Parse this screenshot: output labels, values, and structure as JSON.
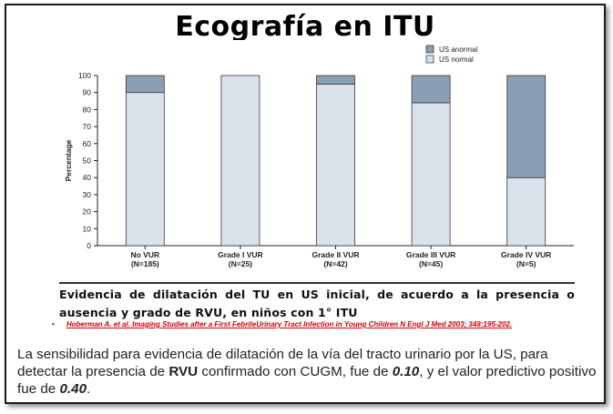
{
  "slide": {
    "title": "Ecografía en ITU",
    "caption": "Evidencia de dilatación del TU en US inicial, de acuerdo a la presencia o ausencia y grado de RVU, en niños con 1° ITU",
    "reference": "Hoberman A. et al. Imaging Studies after a First FebrileUrinary Tract Infection in Young Children N Engl J Med 2003; 348:195-202.",
    "reference_bullet": "•",
    "body": {
      "p1": "La sensibilidad para evidencia de dilatación de la vía del tracto urinario por la US, para detectar la presencia de ",
      "rvu": "RVU",
      "p2": "  confirmado con CUGM, fue de ",
      "sens": "0.10",
      "p3": ", y el valor predictivo positivo fue de ",
      "ppv": "0.40",
      "p4": "."
    }
  },
  "chart_data": {
    "type": "bar",
    "stacked": true,
    "ylabel": "Percentage",
    "ylim": [
      0,
      100
    ],
    "yticks": [
      0,
      10,
      20,
      30,
      40,
      50,
      60,
      70,
      80,
      90,
      100
    ],
    "categories": [
      "No VUR",
      "Grade I VUR",
      "Grade II VUR",
      "Grade III VUR",
      "Grade IV VUR"
    ],
    "category_n": [
      "(N=185)",
      "(N=25)",
      "(N=42)",
      "(N=45)",
      "(N=5)"
    ],
    "series": [
      {
        "name": "US normal",
        "values": [
          90,
          100,
          95,
          84,
          40
        ],
        "color": "#d9e2ea"
      },
      {
        "name": "US anormal",
        "values": [
          10,
          0,
          5,
          16,
          60
        ],
        "color": "#8a9fb3"
      }
    ],
    "legend_position": "top-right",
    "grid": false
  }
}
